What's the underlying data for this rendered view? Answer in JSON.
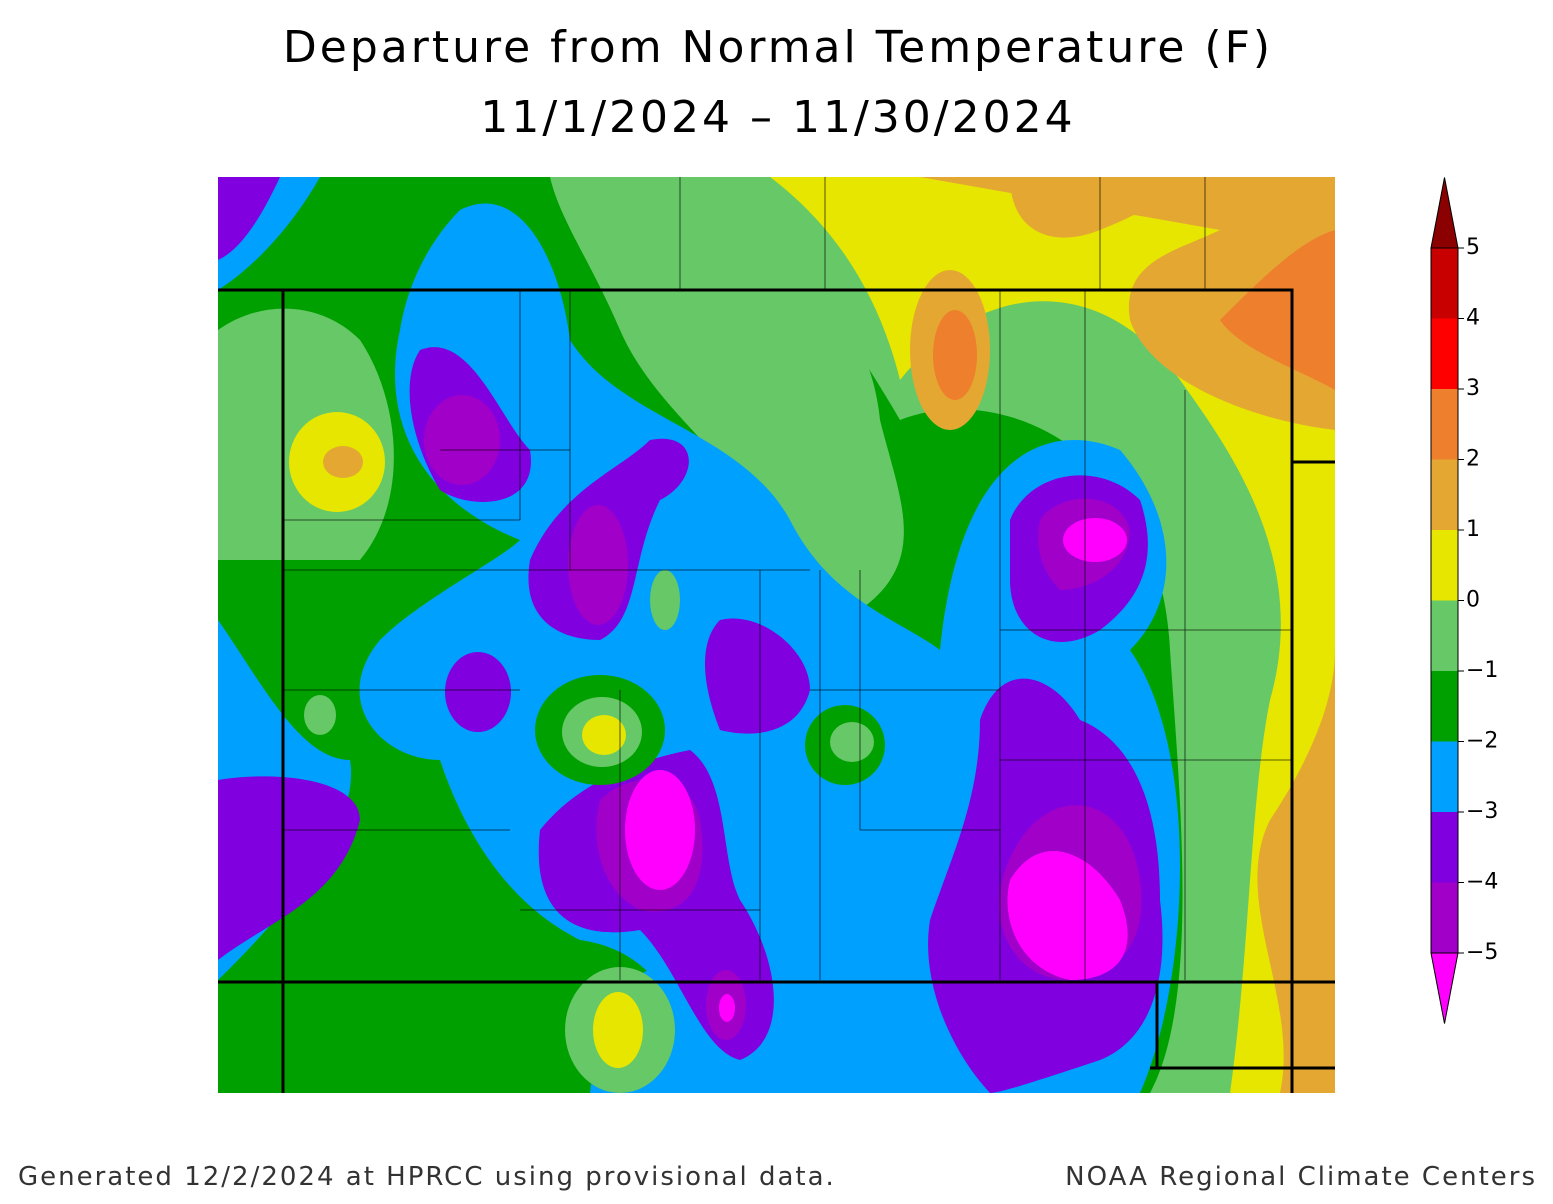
{
  "title": "Departure from Normal Temperature (F)",
  "subtitle": "11/1/2024 – 11/30/2024",
  "legend": {
    "levels": [
      {
        "value": 5,
        "label": "5"
      },
      {
        "value": 4,
        "label": "4"
      },
      {
        "value": 3,
        "label": "3"
      },
      {
        "value": 2,
        "label": "2"
      },
      {
        "value": 1,
        "label": "1"
      },
      {
        "value": 0,
        "label": "0"
      },
      {
        "value": -1,
        "label": "−1"
      },
      {
        "value": -2,
        "label": "−2"
      },
      {
        "value": -3,
        "label": "−3"
      },
      {
        "value": -4,
        "label": "−4"
      },
      {
        "value": -5,
        "label": "−5"
      }
    ],
    "colors": [
      "#8b0000",
      "#c80000",
      "#ff0000",
      "#ee7f2d",
      "#e4a832",
      "#e6e600",
      "#66c866",
      "#00a000",
      "#00a0ff",
      "#8000e0",
      "#a000c8",
      "#ff00ff"
    ]
  },
  "footer": {
    "left": "Generated 12/2/2024 at HPRCC using provisional data.",
    "right": "NOAA Regional Climate Centers"
  }
}
